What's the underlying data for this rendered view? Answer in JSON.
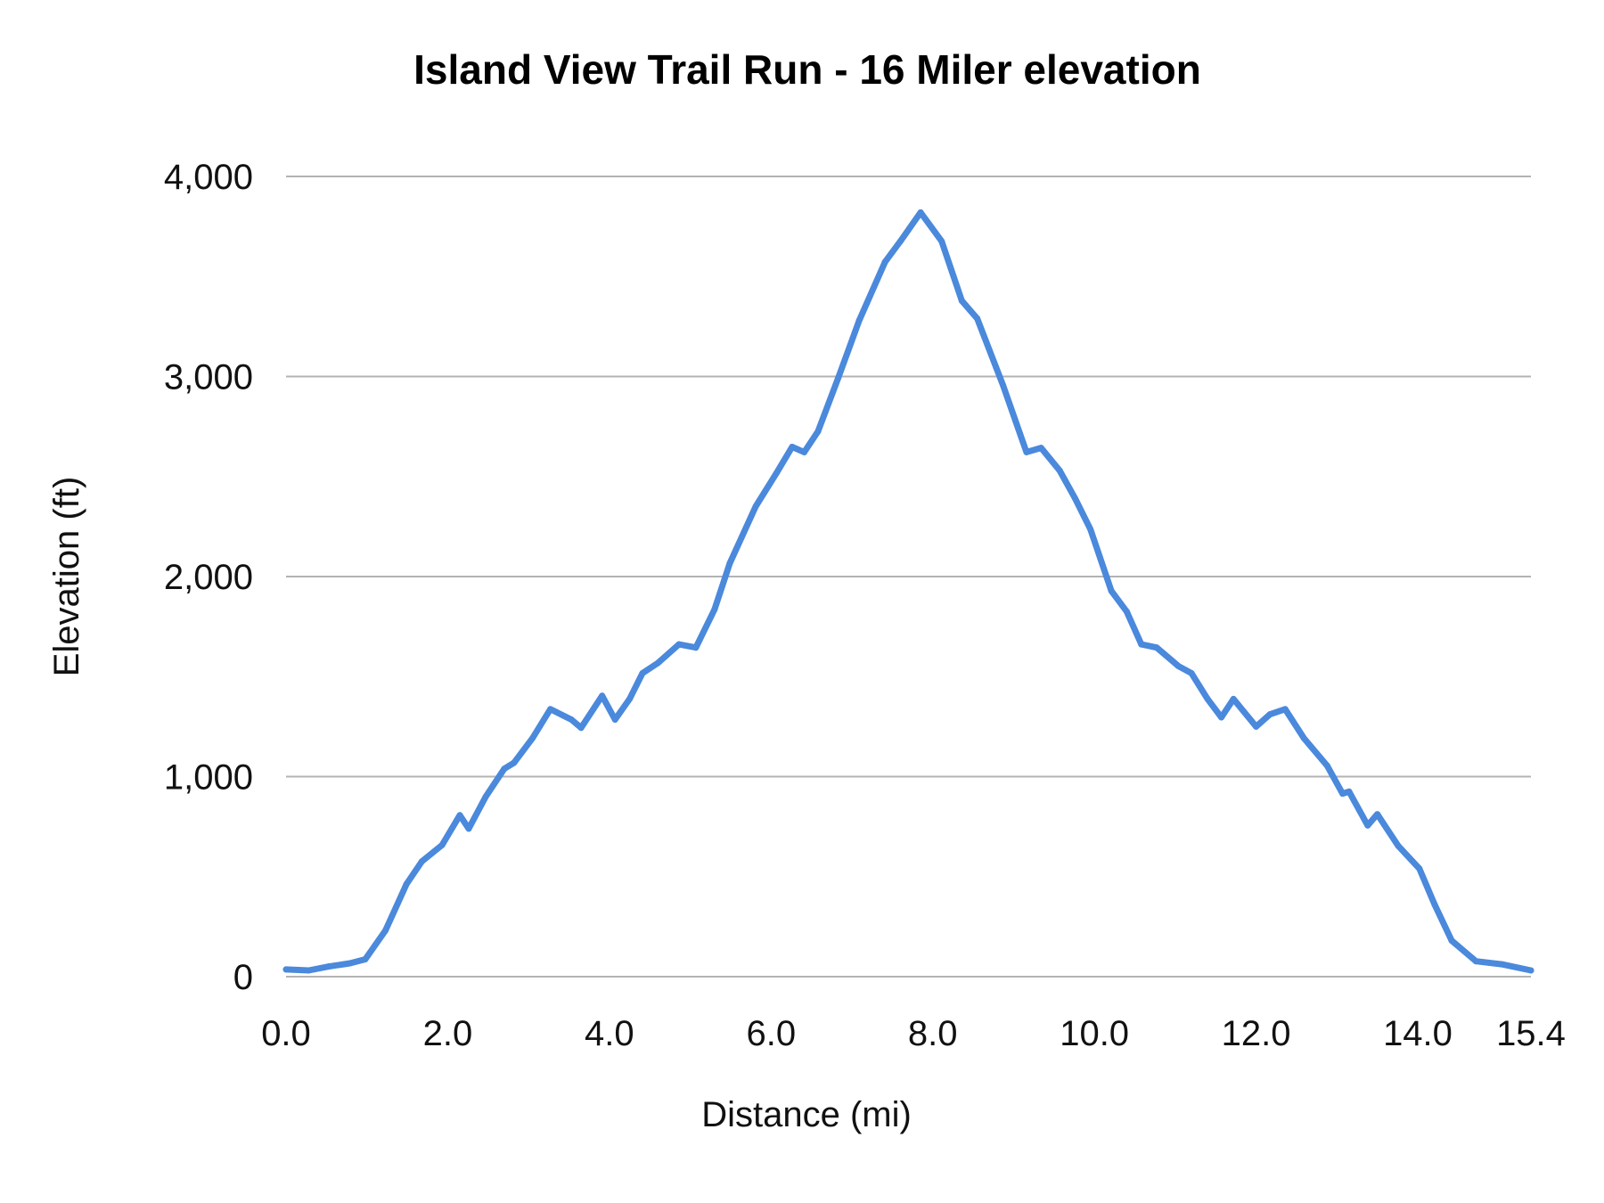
{
  "chart_data": {
    "type": "line",
    "title": "Island View Trail Run - 16 Miler elevation",
    "xlabel": "Distance (mi)",
    "ylabel": "Elevation (ft)",
    "xlim": [
      0,
      15.4
    ],
    "ylim": [
      0,
      4000
    ],
    "x_ticks": [
      "0.0",
      "2.0",
      "4.0",
      "6.0",
      "8.0",
      "10.0",
      "12.0",
      "14.0",
      "15.4"
    ],
    "x_tick_values": [
      0,
      2,
      4,
      6,
      8,
      10,
      12,
      14,
      15.4
    ],
    "y_ticks": [
      "0",
      "1,000",
      "2,000",
      "3,000",
      "4,000"
    ],
    "y_tick_values": [
      0,
      1000,
      2000,
      3000,
      4000
    ],
    "grid": "horizontal",
    "legend": "none",
    "line_color": "#4a89dc",
    "grid_color": "#b3b3b3",
    "series": [
      {
        "x": [
          0,
          0.28,
          0.53,
          0.79,
          0.98,
          1.23,
          1.49,
          1.68,
          1.93,
          2.15,
          2.26,
          2.47,
          2.7,
          2.82,
          3.05,
          3.27,
          3.53,
          3.65,
          3.91,
          4.07,
          4.25,
          4.41,
          4.6,
          4.86,
          5.07,
          5.3,
          5.49,
          5.81,
          6.07,
          6.26,
          6.41,
          6.58,
          6.83,
          7.09,
          7.41,
          7.6,
          7.85,
          8.11,
          8.36,
          8.55,
          8.87,
          9.16,
          9.34,
          9.57,
          9.76,
          9.95,
          10.21,
          10.4,
          10.58,
          10.77,
          11.04,
          11.2,
          11.4,
          11.57,
          11.72,
          12.0,
          12.17,
          12.36,
          12.59,
          12.88,
          13.07,
          13.15,
          13.38,
          13.5,
          13.76,
          14.02,
          14.21,
          14.42,
          14.72,
          15.04,
          15.4
        ],
        "y": [
          36,
          31,
          51,
          67,
          87,
          231,
          463,
          576,
          658,
          807,
          740,
          900,
          1039,
          1069,
          1193,
          1337,
          1285,
          1244,
          1404,
          1285,
          1388,
          1517,
          1568,
          1661,
          1645,
          1835,
          2067,
          2350,
          2519,
          2648,
          2622,
          2725,
          2992,
          3280,
          3573,
          3676,
          3820,
          3676,
          3378,
          3290,
          2956,
          2622,
          2643,
          2530,
          2391,
          2237,
          1928,
          1825,
          1661,
          1645,
          1552,
          1517,
          1388,
          1296,
          1388,
          1250,
          1311,
          1337,
          1193,
          1054,
          915,
          925,
          756,
          812,
          653,
          540,
          360,
          180,
          77,
          62,
          31
        ]
      }
    ]
  }
}
